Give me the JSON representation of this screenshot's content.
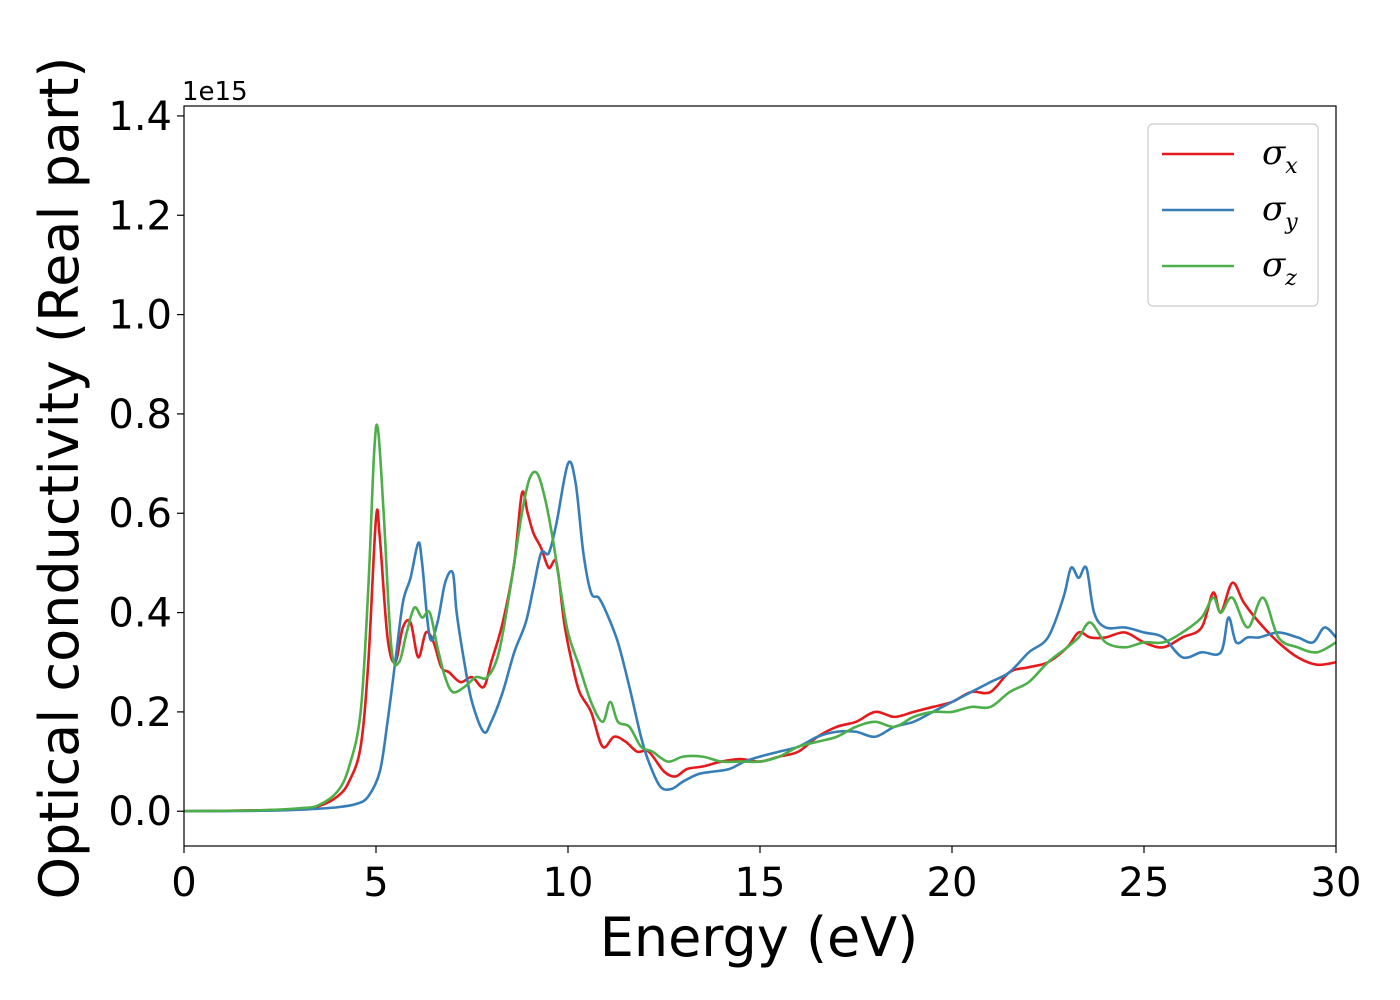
{
  "chart_data": {
    "type": "line",
    "title": "",
    "xlabel": "Energy (eV)",
    "ylabel": "Optical conductivity (Real part)",
    "y_offset_label": "1e15",
    "xlim": [
      0,
      30
    ],
    "ylim": [
      -0.07,
      1.42
    ],
    "xticks": [
      0,
      5,
      10,
      15,
      20,
      25,
      30
    ],
    "yticks": [
      0.0,
      0.2,
      0.4,
      0.6,
      0.8,
      1.0,
      1.2,
      1.4
    ],
    "xtick_labels": [
      "0",
      "5",
      "10",
      "15",
      "20",
      "25",
      "30"
    ],
    "ytick_labels": [
      "0.0",
      "0.2",
      "0.4",
      "0.6",
      "0.8",
      "1.0",
      "1.2",
      "1.4"
    ],
    "grid": false,
    "legend_position": "top-right",
    "series": [
      {
        "name": "σx",
        "symbol": "σ",
        "subscript": "x",
        "color": "#e41a1c",
        "x": [
          0,
          2,
          3,
          3.5,
          4,
          4.3,
          4.6,
          4.8,
          5.0,
          5.1,
          5.3,
          5.5,
          5.7,
          5.9,
          6.1,
          6.3,
          6.5,
          6.7,
          6.9,
          7.2,
          7.5,
          7.8,
          8.0,
          8.3,
          8.6,
          8.8,
          8.95,
          9.1,
          9.3,
          9.5,
          9.7,
          9.9,
          10.1,
          10.3,
          10.6,
          10.9,
          11.2,
          11.5,
          11.8,
          12.1,
          12.5,
          12.8,
          13.1,
          13.5,
          14.0,
          14.5,
          15.0,
          15.5,
          16.0,
          16.5,
          17.0,
          17.5,
          18.0,
          18.5,
          19.0,
          19.5,
          20.0,
          20.5,
          21.0,
          21.5,
          22.0,
          22.5,
          23.0,
          23.3,
          23.6,
          24.0,
          24.5,
          25.0,
          25.5,
          26.0,
          26.5,
          26.8,
          27.0,
          27.3,
          27.6,
          28.0,
          28.5,
          29.0,
          29.5,
          30.0
        ],
        "y": [
          0,
          0.002,
          0.005,
          0.01,
          0.03,
          0.06,
          0.13,
          0.3,
          0.59,
          0.55,
          0.35,
          0.3,
          0.37,
          0.38,
          0.31,
          0.36,
          0.34,
          0.29,
          0.28,
          0.26,
          0.27,
          0.25,
          0.3,
          0.38,
          0.5,
          0.64,
          0.6,
          0.56,
          0.53,
          0.49,
          0.5,
          0.38,
          0.3,
          0.24,
          0.2,
          0.13,
          0.15,
          0.14,
          0.12,
          0.12,
          0.08,
          0.07,
          0.085,
          0.09,
          0.1,
          0.105,
          0.1,
          0.11,
          0.12,
          0.15,
          0.17,
          0.18,
          0.2,
          0.19,
          0.2,
          0.21,
          0.22,
          0.24,
          0.24,
          0.28,
          0.29,
          0.3,
          0.33,
          0.36,
          0.35,
          0.35,
          0.36,
          0.34,
          0.33,
          0.35,
          0.37,
          0.44,
          0.4,
          0.46,
          0.42,
          0.38,
          0.34,
          0.31,
          0.295,
          0.3
        ]
      },
      {
        "name": "σy",
        "symbol": "σ",
        "subscript": "y",
        "color": "#377eb8",
        "x": [
          0,
          2,
          3,
          4,
          4.5,
          4.8,
          5.1,
          5.3,
          5.5,
          5.7,
          5.9,
          6.1,
          6.2,
          6.4,
          6.6,
          6.8,
          7.0,
          7.1,
          7.3,
          7.5,
          7.8,
          8.0,
          8.3,
          8.6,
          8.9,
          9.1,
          9.3,
          9.5,
          9.7,
          10.0,
          10.2,
          10.4,
          10.6,
          10.8,
          11.0,
          11.3,
          11.6,
          11.9,
          12.1,
          12.4,
          12.7,
          13.0,
          13.4,
          13.8,
          14.2,
          14.6,
          15.0,
          15.5,
          16.0,
          16.5,
          17.0,
          17.5,
          18.0,
          18.5,
          19.0,
          19.5,
          20.0,
          20.5,
          21.0,
          21.5,
          22.0,
          22.5,
          22.9,
          23.1,
          23.3,
          23.5,
          23.7,
          24.0,
          24.5,
          25.0,
          25.5,
          26.0,
          26.5,
          27.0,
          27.2,
          27.4,
          27.7,
          28.0,
          28.5,
          29.0,
          29.4,
          29.7,
          30.0
        ],
        "y": [
          0,
          0.001,
          0.003,
          0.008,
          0.015,
          0.03,
          0.08,
          0.18,
          0.3,
          0.42,
          0.47,
          0.54,
          0.5,
          0.35,
          0.38,
          0.46,
          0.48,
          0.4,
          0.3,
          0.22,
          0.16,
          0.18,
          0.24,
          0.32,
          0.38,
          0.45,
          0.52,
          0.52,
          0.58,
          0.7,
          0.66,
          0.52,
          0.44,
          0.43,
          0.4,
          0.34,
          0.25,
          0.15,
          0.1,
          0.05,
          0.045,
          0.06,
          0.075,
          0.08,
          0.085,
          0.1,
          0.11,
          0.12,
          0.13,
          0.15,
          0.16,
          0.16,
          0.15,
          0.17,
          0.18,
          0.2,
          0.22,
          0.24,
          0.26,
          0.28,
          0.32,
          0.35,
          0.43,
          0.49,
          0.47,
          0.49,
          0.4,
          0.37,
          0.37,
          0.36,
          0.35,
          0.31,
          0.32,
          0.32,
          0.39,
          0.34,
          0.35,
          0.35,
          0.36,
          0.35,
          0.34,
          0.37,
          0.35
        ]
      },
      {
        "name": "σz",
        "symbol": "σ",
        "subscript": "z",
        "color": "#4daf4a",
        "x": [
          0,
          2,
          3,
          3.5,
          4,
          4.3,
          4.6,
          4.8,
          4.95,
          5.05,
          5.2,
          5.4,
          5.6,
          5.8,
          6.0,
          6.2,
          6.4,
          6.6,
          6.8,
          7.0,
          7.3,
          7.6,
          7.9,
          8.2,
          8.5,
          8.8,
          9.0,
          9.2,
          9.4,
          9.6,
          9.8,
          10.0,
          10.3,
          10.6,
          10.9,
          11.1,
          11.3,
          11.6,
          11.9,
          12.2,
          12.6,
          13.0,
          13.5,
          14.0,
          14.5,
          15.0,
          15.5,
          16.0,
          16.5,
          17.0,
          17.5,
          18.0,
          18.5,
          19.0,
          19.5,
          20.0,
          20.5,
          21.0,
          21.5,
          22.0,
          22.5,
          23.0,
          23.3,
          23.6,
          24.0,
          24.5,
          25.0,
          25.5,
          26.0,
          26.5,
          26.8,
          27.0,
          27.3,
          27.7,
          28.1,
          28.5,
          29.0,
          29.5,
          30.0
        ],
        "y": [
          0,
          0.002,
          0.006,
          0.012,
          0.04,
          0.09,
          0.2,
          0.45,
          0.72,
          0.77,
          0.6,
          0.33,
          0.3,
          0.36,
          0.41,
          0.39,
          0.4,
          0.33,
          0.27,
          0.24,
          0.25,
          0.27,
          0.27,
          0.32,
          0.45,
          0.6,
          0.67,
          0.68,
          0.63,
          0.55,
          0.45,
          0.36,
          0.29,
          0.22,
          0.18,
          0.22,
          0.18,
          0.17,
          0.13,
          0.12,
          0.1,
          0.11,
          0.11,
          0.1,
          0.1,
          0.1,
          0.11,
          0.13,
          0.14,
          0.15,
          0.17,
          0.18,
          0.17,
          0.19,
          0.2,
          0.2,
          0.21,
          0.21,
          0.24,
          0.26,
          0.3,
          0.33,
          0.35,
          0.38,
          0.34,
          0.33,
          0.34,
          0.34,
          0.36,
          0.39,
          0.43,
          0.4,
          0.43,
          0.37,
          0.43,
          0.35,
          0.33,
          0.32,
          0.34
        ]
      }
    ]
  }
}
